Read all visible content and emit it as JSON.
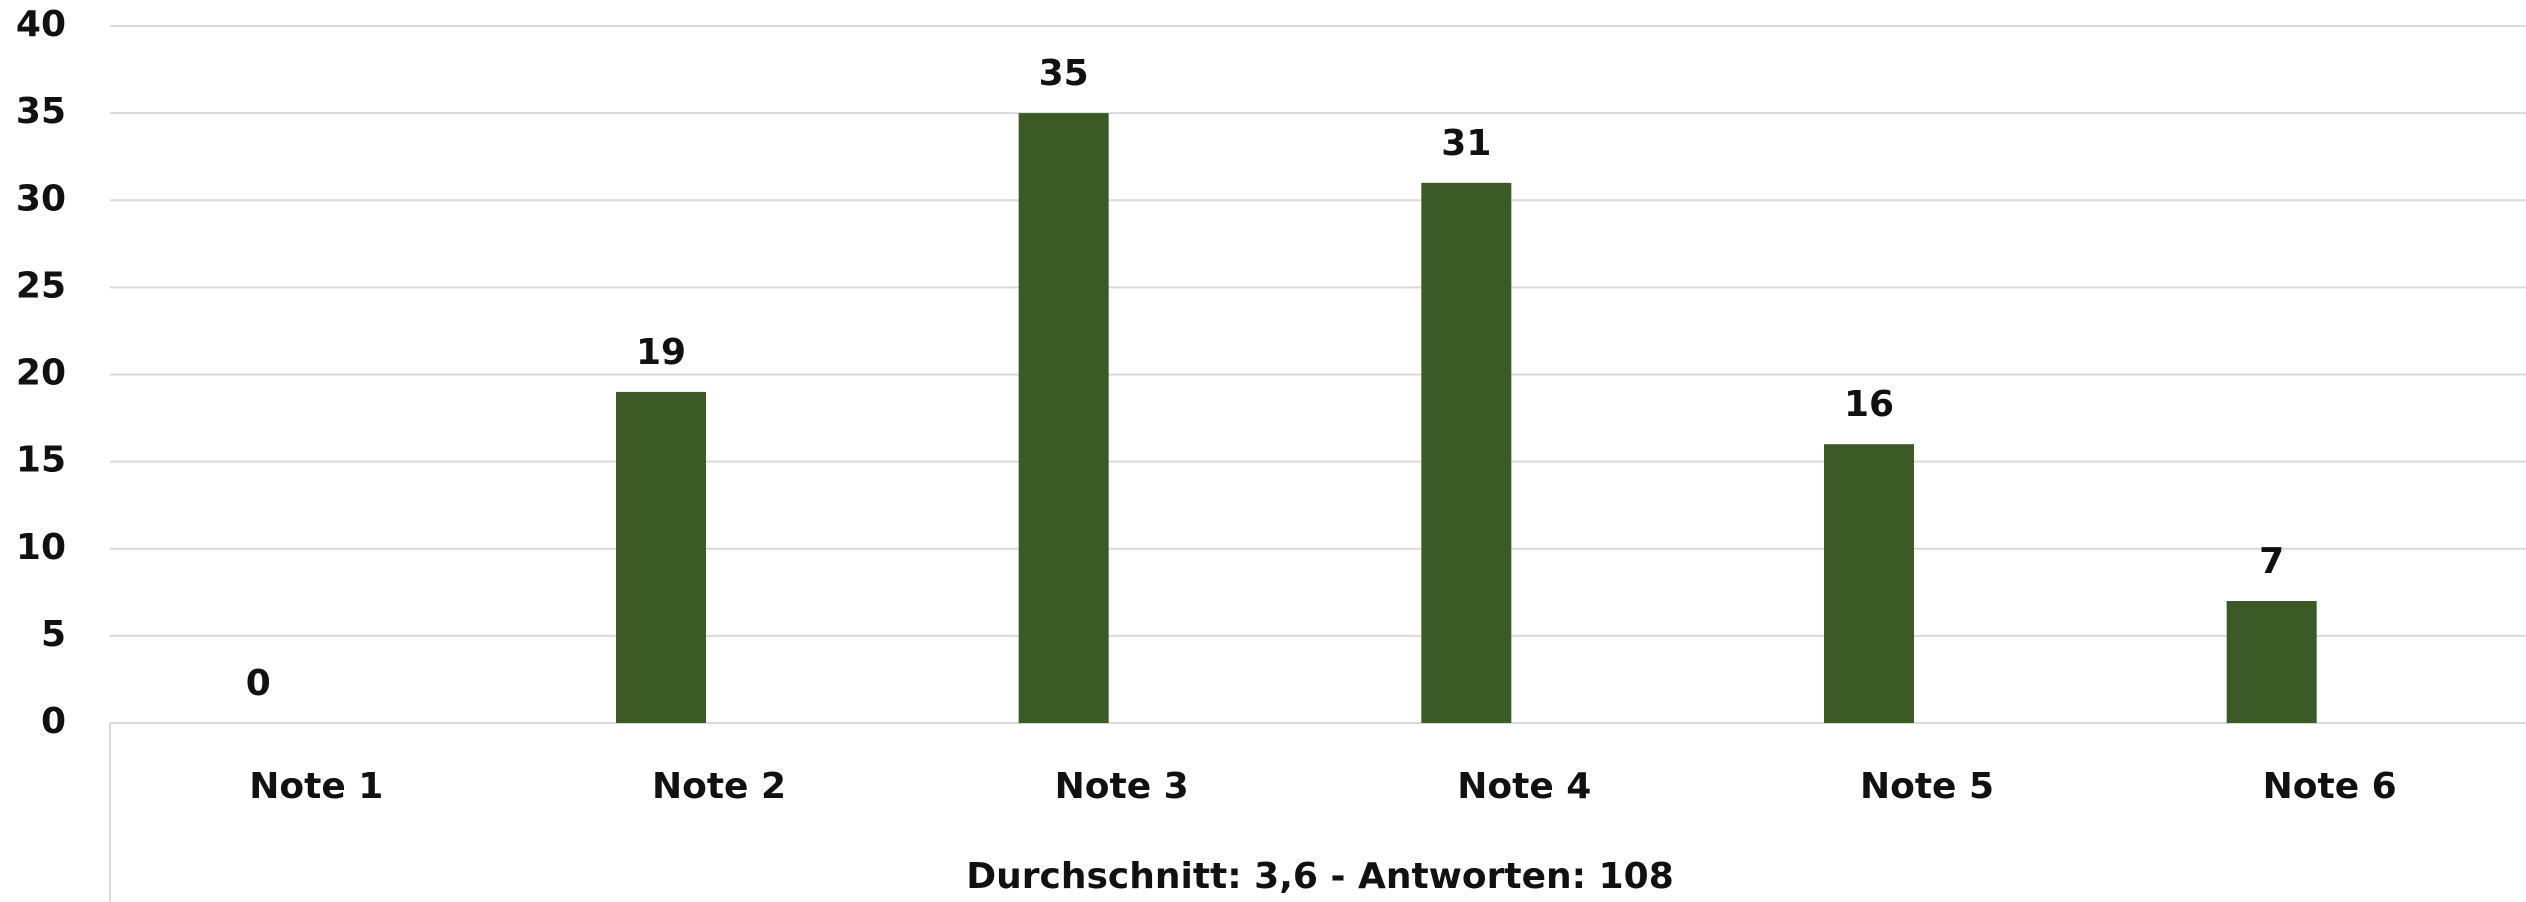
{
  "chart_data": {
    "type": "bar",
    "x_label": "Durchschnitt: 3,6 - Antworten: 108",
    "categories": [
      "Note 1",
      "Note 2",
      "Note 3",
      "Note 4",
      "Note 5",
      "Note 6"
    ],
    "values": [
      0,
      19,
      35,
      31,
      16,
      7
    ],
    "color": "#3b5a26",
    "ylim": [
      0,
      40
    ],
    "yticks": [
      0,
      5,
      10,
      15,
      20,
      25,
      30,
      35,
      40
    ],
    "grid": true
  }
}
